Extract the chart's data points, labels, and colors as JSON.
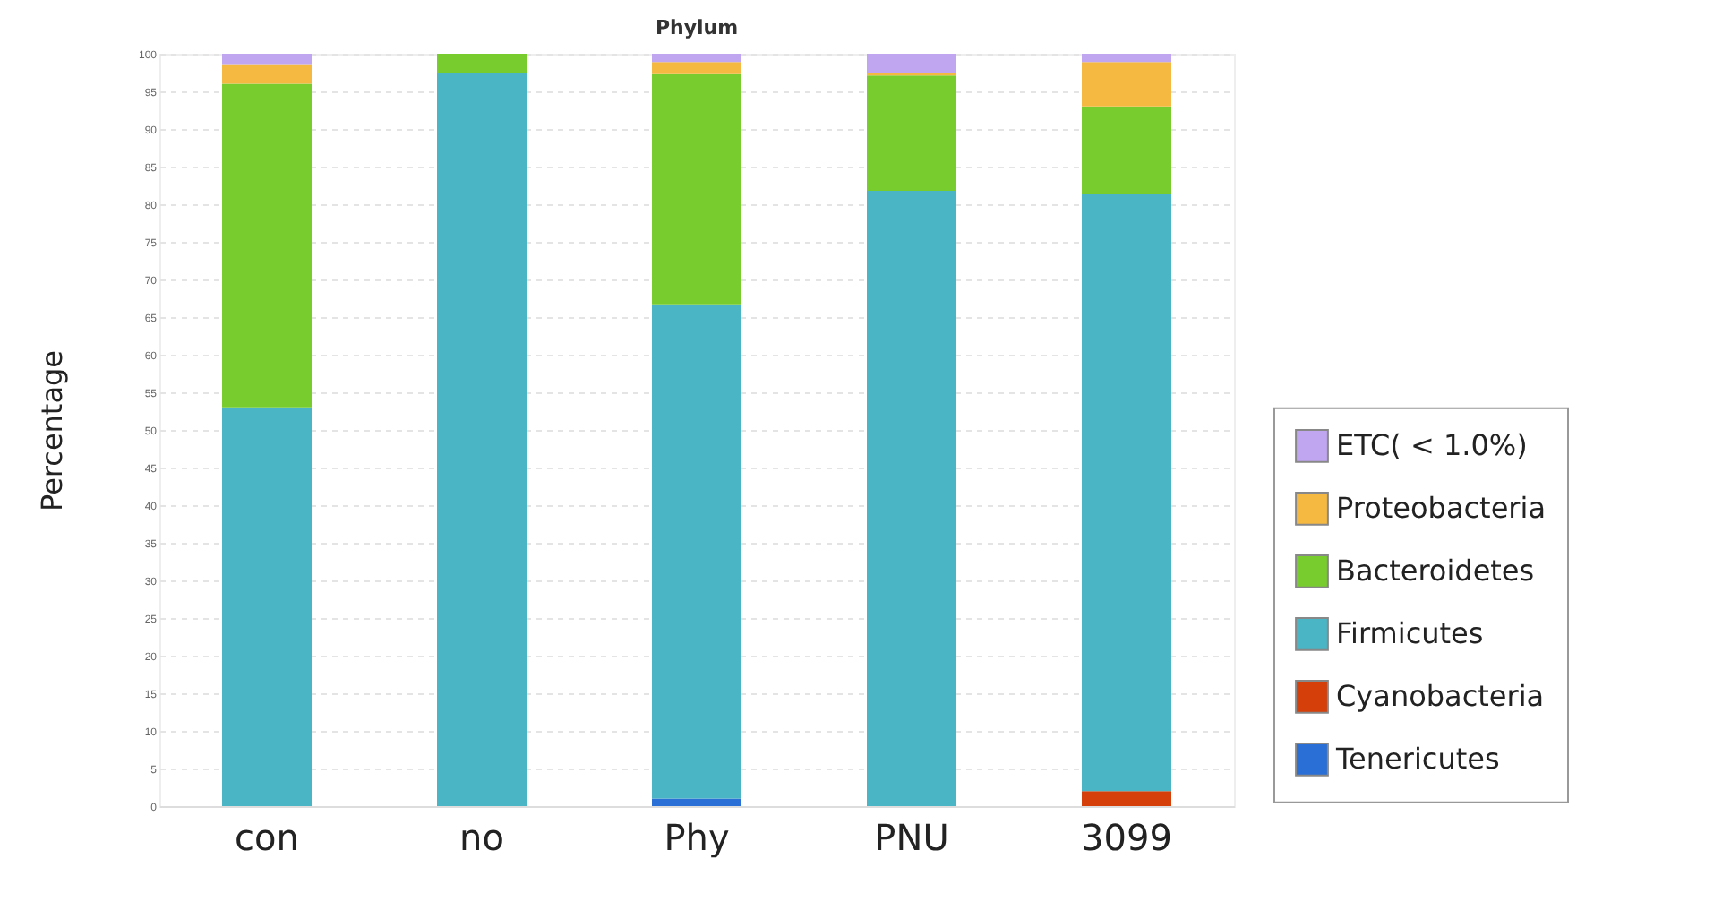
{
  "chart_data": {
    "type": "bar",
    "stacked": true,
    "title": "Phylum",
    "ylabel": "Percentage",
    "categories": [
      "con",
      "no",
      "Phy",
      "PNU",
      "3099"
    ],
    "series": [
      {
        "name": "Tenericutes",
        "color": "#2a6fd6",
        "values": [
          null,
          null,
          1,
          null,
          null
        ]
      },
      {
        "name": "Cyanobacteria",
        "color": "#d43f0a",
        "values": [
          null,
          null,
          null,
          null,
          2
        ]
      },
      {
        "name": "Firmicutes",
        "color": "#4ab5c4",
        "values": [
          53,
          97.5,
          65.7,
          81.8,
          79.3
        ]
      },
      {
        "name": "Bacteroidetes",
        "color": "#78cc2e",
        "values": [
          43,
          2.5,
          30.6,
          15.3,
          11.7
        ]
      },
      {
        "name": "Proteobacteria",
        "color": "#f5b942",
        "values": [
          2.5,
          null,
          1.6,
          0.4,
          5.9
        ]
      },
      {
        "name": "ETC( < 1.0%)",
        "color": "#c0a6f0",
        "values": [
          1.5,
          null,
          1.1,
          2.5,
          1.1
        ]
      }
    ],
    "ylim": [
      0,
      100
    ],
    "yticks": [
      0,
      5,
      10,
      15,
      20,
      25,
      30,
      35,
      40,
      45,
      50,
      55,
      60,
      65,
      70,
      75,
      80,
      85,
      90,
      95,
      100
    ],
    "grid": "y",
    "legend": "right"
  }
}
